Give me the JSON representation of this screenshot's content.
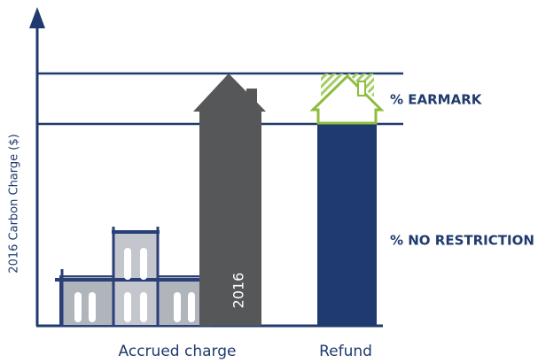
{
  "y_axis_label": "2016 Carbon Charge ($)",
  "house_label": "2016",
  "segments": {
    "earmark": "% EARMARK",
    "no_restriction": "% NO RESTRICTION"
  },
  "x_labels": [
    "Accrued charge",
    "Refund"
  ]
}
